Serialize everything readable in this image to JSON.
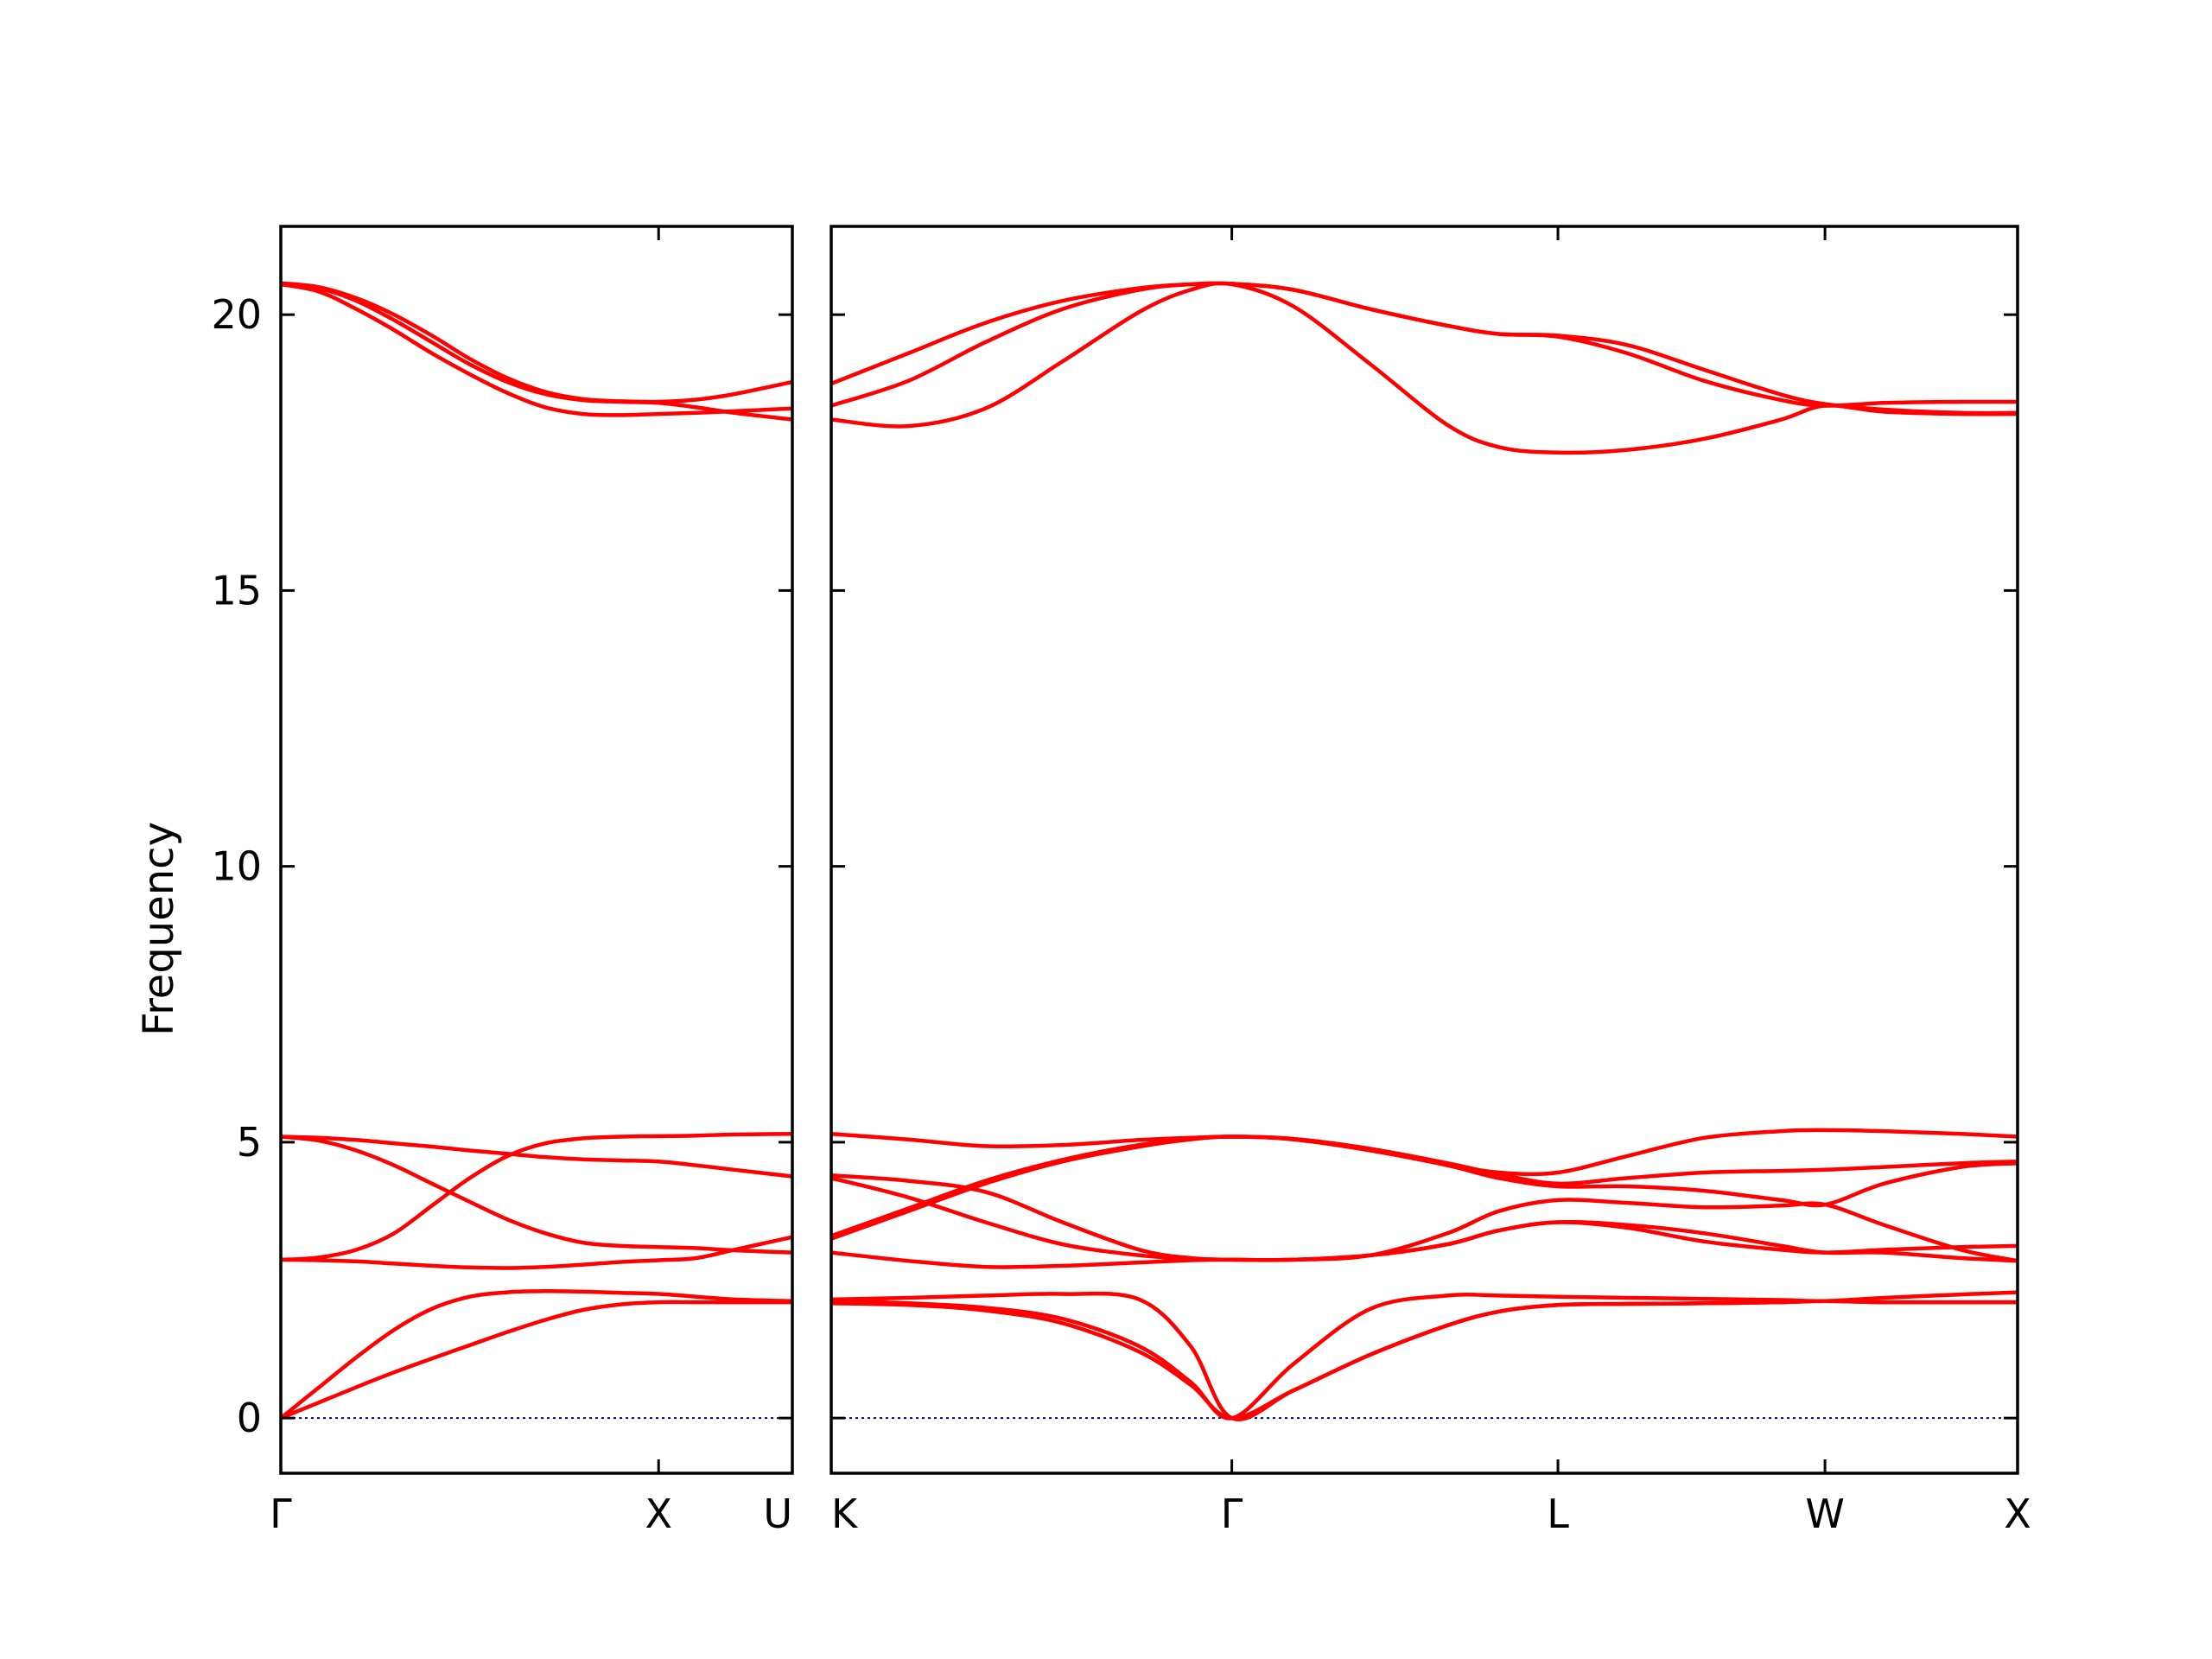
{
  "chart_data": {
    "type": "line",
    "title": "",
    "xlabel": "",
    "ylabel": "Frequency",
    "ylim": [
      -1,
      21.6
    ],
    "yticks": [
      0,
      5,
      10,
      15,
      20
    ],
    "grid": false,
    "legend": "none",
    "colors": {
      "bands": "#ff0000",
      "zero_line": "#00008b"
    },
    "panels": [
      {
        "path_segments": [
          "Γ-X",
          "X-U"
        ],
        "xlim": [
          0,
          1.354
        ],
        "ticks": [
          {
            "x": 0,
            "label": "Γ"
          },
          {
            "x": 1.0,
            "label": "X"
          }
        ],
        "edge_label_right": "U",
        "series": [
          {
            "x": [
              0,
              0.1,
              0.2,
              0.3,
              0.4,
              0.5,
              0.6,
              0.7,
              0.8,
              0.9,
              1.0,
              1.1,
              1.2,
              1.354
            ],
            "values": [
              0,
              0.28,
              0.56,
              0.83,
              1.08,
              1.32,
              1.56,
              1.78,
              1.96,
              2.06,
              2.1,
              2.1,
              2.1,
              2.1
            ]
          },
          {
            "x": [
              0,
              0.1,
              0.2,
              0.3,
              0.4,
              0.5,
              0.6,
              0.7,
              0.8,
              0.9,
              1.0,
              1.1,
              1.2,
              1.354
            ],
            "values": [
              0,
              0.55,
              1.1,
              1.6,
              1.98,
              2.2,
              2.28,
              2.3,
              2.29,
              2.27,
              2.25,
              2.2,
              2.15,
              2.12
            ]
          },
          {
            "x": [
              0,
              0.1,
              0.2,
              0.3,
              0.4,
              0.5,
              0.6,
              0.7,
              0.8,
              0.9,
              1.0,
              1.1,
              1.2,
              1.354
            ],
            "values": [
              2.87,
              2.86,
              2.84,
              2.8,
              2.76,
              2.73,
              2.72,
              2.74,
              2.78,
              2.83,
              2.86,
              2.9,
              3.05,
              3.28
            ]
          },
          {
            "x": [
              0,
              0.1,
              0.2,
              0.3,
              0.4,
              0.5,
              0.6,
              0.7,
              0.8,
              0.9,
              1.0,
              1.1,
              1.2,
              1.354
            ],
            "values": [
              2.87,
              2.91,
              3.05,
              3.35,
              3.85,
              4.35,
              4.75,
              4.98,
              5.07,
              5.1,
              5.11,
              5.12,
              5.14,
              5.15
            ]
          },
          {
            "x": [
              0,
              0.1,
              0.2,
              0.3,
              0.4,
              0.5,
              0.6,
              0.7,
              0.8,
              0.9,
              1.0,
              1.1,
              1.2,
              1.354
            ],
            "values": [
              5.1,
              5.03,
              4.85,
              4.58,
              4.25,
              3.92,
              3.6,
              3.35,
              3.18,
              3.12,
              3.1,
              3.08,
              3.04,
              3.0
            ]
          },
          {
            "x": [
              0,
              0.1,
              0.2,
              0.3,
              0.4,
              0.5,
              0.6,
              0.7,
              0.8,
              0.9,
              1.0,
              1.1,
              1.2,
              1.354
            ],
            "values": [
              5.1,
              5.08,
              5.04,
              4.98,
              4.92,
              4.85,
              4.79,
              4.73,
              4.69,
              4.67,
              4.65,
              4.58,
              4.5,
              4.38
            ]
          },
          {
            "x": [
              0,
              0.1,
              0.2,
              0.3,
              0.4,
              0.5,
              0.6,
              0.7,
              0.8,
              0.9,
              1.0,
              1.1,
              1.2,
              1.354
            ],
            "values": [
              20.55,
              20.42,
              20.1,
              19.72,
              19.3,
              18.92,
              18.58,
              18.32,
              18.2,
              18.18,
              18.2,
              18.22,
              18.25,
              18.3
            ]
          },
          {
            "x": [
              0,
              0.1,
              0.2,
              0.3,
              0.4,
              0.5,
              0.6,
              0.7,
              0.8,
              0.9,
              1.0,
              1.1,
              1.2,
              1.354
            ],
            "values": [
              20.55,
              20.48,
              20.25,
              19.9,
              19.5,
              19.1,
              18.78,
              18.56,
              18.45,
              18.42,
              18.4,
              18.32,
              18.22,
              18.1
            ]
          },
          {
            "x": [
              0,
              0.1,
              0.2,
              0.3,
              0.4,
              0.5,
              0.6,
              0.7,
              0.8,
              0.9,
              1.0,
              1.1,
              1.2,
              1.354
            ],
            "values": [
              20.57,
              20.5,
              20.3,
              20.0,
              19.62,
              19.2,
              18.85,
              18.6,
              18.47,
              18.43,
              18.42,
              18.46,
              18.56,
              18.78
            ]
          }
        ]
      },
      {
        "path_segments": [
          "K-Γ",
          "Γ-L",
          "L-W",
          "W-X"
        ],
        "xlim": [
          0,
          4.62
        ],
        "ticks": [
          {
            "x": 0,
            "label": "K"
          },
          {
            "x": 1.56,
            "label": "Γ"
          },
          {
            "x": 2.83,
            "label": "L"
          },
          {
            "x": 3.87,
            "label": "W"
          },
          {
            "x": 4.62,
            "label": "X"
          }
        ],
        "edge_label_left": "K",
        "series": [
          {
            "x": [
              0,
              0.3,
              0.6,
              0.9,
              1.2,
              1.4,
              1.56,
              1.8,
              2.1,
              2.4,
              2.6,
              2.83,
              3.1,
              3.4,
              3.7,
              3.87,
              4.1,
              4.4,
              4.62
            ],
            "values": [
              2.08,
              2.05,
              1.95,
              1.72,
              1.2,
              0.6,
              0,
              0.5,
              1.15,
              1.68,
              1.93,
              2.05,
              2.07,
              2.08,
              2.1,
              2.12,
              2.1,
              2.1,
              2.1
            ]
          },
          {
            "x": [
              0,
              0.3,
              0.6,
              0.9,
              1.2,
              1.4,
              1.56,
              1.8,
              2.1,
              2.4,
              2.6,
              2.83,
              3.1,
              3.4,
              3.7,
              3.87,
              4.1,
              4.4,
              4.62
            ],
            "values": [
              2.12,
              2.08,
              2.0,
              1.8,
              1.3,
              0.65,
              0,
              0.98,
              1.98,
              2.22,
              2.22,
              2.2,
              2.18,
              2.16,
              2.14,
              2.12,
              2.18,
              2.24,
              2.28
            ]
          },
          {
            "x": [
              0,
              0.3,
              0.6,
              0.9,
              1.2,
              1.4,
              1.56,
              1.8,
              2.1,
              2.4,
              2.6,
              2.83,
              3.1,
              3.4,
              3.7,
              3.87,
              4.1,
              4.4,
              4.62
            ],
            "values": [
              2.15,
              2.18,
              2.22,
              2.25,
              2.15,
              1.3,
              0,
              0.5,
              1.15,
              1.68,
              1.93,
              2.05,
              2.07,
              2.08,
              2.1,
              2.12,
              2.1,
              2.1,
              2.1
            ]
          },
          {
            "x": [
              0,
              0.3,
              0.6,
              0.9,
              1.2,
              1.4,
              1.56,
              1.8,
              2.1,
              2.4,
              2.6,
              2.83,
              3.1,
              3.4,
              3.7,
              3.87,
              4.1,
              4.4,
              4.62
            ],
            "values": [
              3.0,
              2.85,
              2.74,
              2.76,
              2.82,
              2.86,
              2.87,
              2.87,
              2.95,
              3.15,
              3.4,
              3.55,
              3.45,
              3.2,
              3.05,
              3.0,
              3.05,
              3.1,
              3.12
            ]
          },
          {
            "x": [
              0,
              0.3,
              0.6,
              0.9,
              1.2,
              1.4,
              1.56,
              1.8,
              2.1,
              2.4,
              2.6,
              2.83,
              3.1,
              3.4,
              3.7,
              3.87,
              4.1,
              4.4,
              4.62
            ],
            "values": [
              4.35,
              4.0,
              3.55,
              3.15,
              2.95,
              2.89,
              2.87,
              2.87,
              2.95,
              3.15,
              3.4,
              3.55,
              3.5,
              3.35,
              3.12,
              3.0,
              3.0,
              2.9,
              2.85
            ]
          },
          {
            "x": [
              0,
              0.3,
              0.6,
              0.9,
              1.2,
              1.4,
              1.56,
              1.8,
              2.1,
              2.4,
              2.6,
              2.83,
              3.1,
              3.4,
              3.7,
              3.87,
              4.1,
              4.4,
              4.62
            ],
            "values": [
              4.4,
              4.3,
              4.1,
              3.55,
              3.05,
              2.9,
              2.87,
              2.87,
              2.95,
              3.35,
              3.75,
              3.95,
              3.9,
              3.82,
              3.85,
              3.87,
              3.5,
              3.05,
              2.85
            ]
          },
          {
            "x": [
              0,
              0.3,
              0.6,
              0.9,
              1.2,
              1.4,
              1.56,
              1.8,
              2.1,
              2.4,
              2.6,
              2.83,
              3.1,
              3.4,
              3.7,
              3.87,
              4.1,
              4.4,
              4.62
            ],
            "values": [
              3.25,
              3.75,
              4.25,
              4.65,
              4.92,
              5.05,
              5.1,
              5.05,
              4.85,
              4.58,
              4.35,
              4.2,
              4.2,
              4.12,
              3.95,
              3.87,
              4.25,
              4.55,
              4.62
            ]
          },
          {
            "x": [
              0,
              0.3,
              0.6,
              0.9,
              1.2,
              1.4,
              1.56,
              1.8,
              2.1,
              2.4,
              2.6,
              2.83,
              3.1,
              3.4,
              3.7,
              3.87,
              4.1,
              4.4,
              4.62
            ],
            "values": [
              3.3,
              3.8,
              4.3,
              4.68,
              4.95,
              5.06,
              5.1,
              5.06,
              4.88,
              4.62,
              4.42,
              4.25,
              4.35,
              4.45,
              4.48,
              4.5,
              4.55,
              4.62,
              4.65
            ]
          },
          {
            "x": [
              0,
              0.3,
              0.6,
              0.9,
              1.2,
              1.4,
              1.56,
              1.8,
              2.1,
              2.4,
              2.6,
              2.83,
              3.1,
              3.4,
              3.7,
              3.87,
              4.1,
              4.4,
              4.62
            ],
            "values": [
              5.15,
              5.05,
              4.93,
              4.95,
              5.04,
              5.08,
              5.1,
              5.06,
              4.88,
              4.6,
              4.45,
              4.45,
              4.75,
              5.08,
              5.2,
              5.22,
              5.2,
              5.15,
              5.1
            ]
          },
          {
            "x": [
              0,
              0.3,
              0.6,
              0.9,
              1.2,
              1.4,
              1.56,
              1.8,
              2.1,
              2.4,
              2.6,
              2.83,
              3.1,
              3.4,
              3.7,
              3.87,
              4.1,
              4.4,
              4.62
            ],
            "values": [
              18.1,
              17.98,
              18.3,
              19.15,
              20.05,
              20.45,
              20.55,
              20.15,
              19.1,
              18.0,
              17.6,
              17.5,
              17.55,
              17.75,
              18.1,
              18.35,
              18.24,
              18.2,
              18.2
            ]
          },
          {
            "x": [
              0,
              0.3,
              0.6,
              0.9,
              1.2,
              1.4,
              1.56,
              1.8,
              2.1,
              2.4,
              2.6,
              2.83,
              3.1,
              3.4,
              3.7,
              3.87,
              4.1,
              4.4,
              4.62
            ],
            "values": [
              18.35,
              18.8,
              19.5,
              20.1,
              20.45,
              20.55,
              20.56,
              20.45,
              20.1,
              19.8,
              19.65,
              19.6,
              19.3,
              18.8,
              18.45,
              18.35,
              18.4,
              18.42,
              18.42
            ]
          },
          {
            "x": [
              0,
              0.3,
              0.6,
              0.9,
              1.2,
              1.4,
              1.56,
              1.8,
              2.1,
              2.4,
              2.6,
              2.83,
              3.1,
              3.4,
              3.7,
              3.87,
              4.1,
              4.4,
              4.62
            ],
            "values": [
              18.75,
              19.3,
              19.85,
              20.25,
              20.48,
              20.55,
              20.56,
              20.45,
              20.1,
              19.8,
              19.65,
              19.62,
              19.45,
              19.0,
              18.55,
              18.38,
              18.28,
              18.22,
              18.22
            ]
          }
        ]
      }
    ]
  }
}
